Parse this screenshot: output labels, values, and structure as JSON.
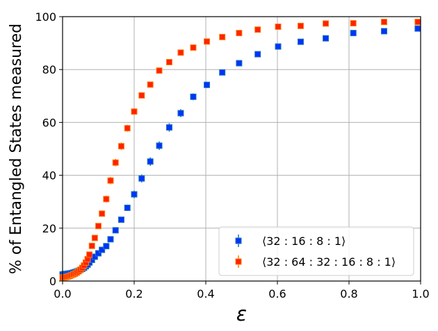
{
  "chart_data": {
    "type": "scatter",
    "xlabel": "ε",
    "ylabel": "% of Entangled States measured",
    "xlim": [
      0.0,
      1.0
    ],
    "ylim": [
      0,
      100
    ],
    "xticks": [
      "0.0",
      "0.2",
      "0.4",
      "0.6",
      "0.8",
      "1.0"
    ],
    "yticks": [
      "0",
      "20",
      "40",
      "60",
      "80",
      "100"
    ],
    "grid": true,
    "legend_position": "lower-right",
    "series": [
      {
        "name": "⟨32 : 16 : 8 : 1⟩",
        "marker_color": "#0033ff",
        "errorbar_color": "#1f77b4",
        "points": [
          [
            0.0,
            2.5,
            0.6
          ],
          [
            0.005,
            2.6,
            0.6
          ],
          [
            0.01,
            2.7,
            0.6
          ],
          [
            0.015,
            2.8,
            0.6
          ],
          [
            0.02,
            2.9,
            0.6
          ],
          [
            0.025,
            3.0,
            0.6
          ],
          [
            0.03,
            3.2,
            0.6
          ],
          [
            0.035,
            3.4,
            0.6
          ],
          [
            0.04,
            3.6,
            0.6
          ],
          [
            0.045,
            3.9,
            0.6
          ],
          [
            0.05,
            4.2,
            0.6
          ],
          [
            0.055,
            4.6,
            0.6
          ],
          [
            0.06,
            5.0,
            0.6
          ],
          [
            0.065,
            5.6,
            0.7
          ],
          [
            0.07,
            6.2,
            0.7
          ],
          [
            0.075,
            7.0,
            0.7
          ],
          [
            0.082,
            8.0,
            0.8
          ],
          [
            0.09,
            9.2,
            0.8
          ],
          [
            0.1,
            10.5,
            0.8
          ],
          [
            0.11,
            11.8,
            0.9
          ],
          [
            0.122,
            13.2,
            0.9
          ],
          [
            0.134,
            15.8,
            1.0
          ],
          [
            0.148,
            19.2,
            1.0
          ],
          [
            0.164,
            23.2,
            1.1
          ],
          [
            0.181,
            27.7,
            1.2
          ],
          [
            0.2,
            32.8,
            1.4
          ],
          [
            0.221,
            38.8,
            1.5
          ],
          [
            0.245,
            45.2,
            1.6
          ],
          [
            0.27,
            51.2,
            1.6
          ],
          [
            0.298,
            58.1,
            1.6
          ],
          [
            0.33,
            63.5,
            1.5
          ],
          [
            0.365,
            69.7,
            1.3
          ],
          [
            0.403,
            74.2,
            1.2
          ],
          [
            0.446,
            78.9,
            1.0
          ],
          [
            0.493,
            82.4,
            0.9
          ],
          [
            0.545,
            85.8,
            0.8
          ],
          [
            0.602,
            88.7,
            0.7
          ],
          [
            0.665,
            90.5,
            0.7
          ],
          [
            0.735,
            91.8,
            0.6
          ],
          [
            0.812,
            93.8,
            0.6
          ],
          [
            0.898,
            94.5,
            0.6
          ],
          [
            0.992,
            95.5,
            0.6
          ]
        ]
      },
      {
        "name": "⟨32 : 64 : 32 : 16 : 8 : 1⟩",
        "marker_color": "#ff2200",
        "errorbar_color": "#ff7f0e",
        "points": [
          [
            0.0,
            1.3,
            0.5
          ],
          [
            0.005,
            1.4,
            0.5
          ],
          [
            0.01,
            1.5,
            0.5
          ],
          [
            0.015,
            1.7,
            0.5
          ],
          [
            0.02,
            1.9,
            0.5
          ],
          [
            0.025,
            2.2,
            0.5
          ],
          [
            0.03,
            2.5,
            0.5
          ],
          [
            0.035,
            2.8,
            0.5
          ],
          [
            0.04,
            3.2,
            0.5
          ],
          [
            0.045,
            3.7,
            0.5
          ],
          [
            0.05,
            4.3,
            0.6
          ],
          [
            0.055,
            5.0,
            0.6
          ],
          [
            0.06,
            5.9,
            0.6
          ],
          [
            0.065,
            7.0,
            0.7
          ],
          [
            0.07,
            8.3,
            0.7
          ],
          [
            0.075,
            10.0,
            0.8
          ],
          [
            0.082,
            13.3,
            0.9
          ],
          [
            0.09,
            16.3,
            1.0
          ],
          [
            0.1,
            20.8,
            1.1
          ],
          [
            0.11,
            25.5,
            1.2
          ],
          [
            0.122,
            31.0,
            1.3
          ],
          [
            0.134,
            38.0,
            1.4
          ],
          [
            0.148,
            44.8,
            1.4
          ],
          [
            0.164,
            51.0,
            1.4
          ],
          [
            0.181,
            57.8,
            1.3
          ],
          [
            0.2,
            64.1,
            1.2
          ],
          [
            0.221,
            70.2,
            1.1
          ],
          [
            0.245,
            74.3,
            1.0
          ],
          [
            0.27,
            79.6,
            0.9
          ],
          [
            0.298,
            82.8,
            0.8
          ],
          [
            0.33,
            86.4,
            0.7
          ],
          [
            0.365,
            88.3,
            0.6
          ],
          [
            0.403,
            90.6,
            0.6
          ],
          [
            0.446,
            92.3,
            0.5
          ],
          [
            0.493,
            93.8,
            0.5
          ],
          [
            0.545,
            95.1,
            0.5
          ],
          [
            0.602,
            96.2,
            0.5
          ],
          [
            0.665,
            96.5,
            0.5
          ],
          [
            0.735,
            97.4,
            0.5
          ],
          [
            0.812,
            97.5,
            0.5
          ],
          [
            0.898,
            98.0,
            0.5
          ],
          [
            0.992,
            98.0,
            0.5
          ]
        ]
      }
    ]
  }
}
